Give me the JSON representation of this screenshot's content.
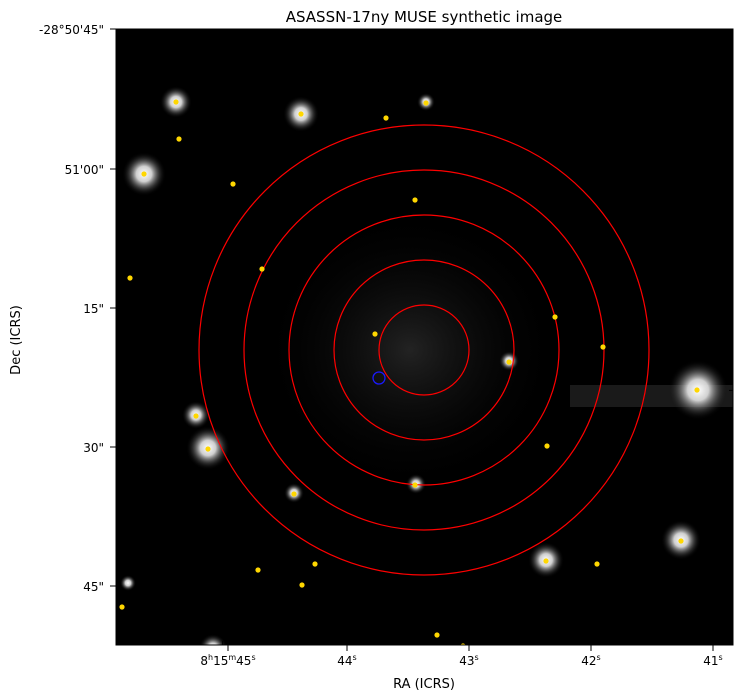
{
  "title": "ASASSN-17ny MUSE synthetic image",
  "xlabel": "RA (ICRS)",
  "ylabel": "Dec (ICRS)",
  "y_ticks": [
    "-28°50'45\"",
    "51'00\"",
    "15\"",
    "30\"",
    "45\""
  ],
  "x_ticks": [
    {
      "h": "8",
      "m": "15",
      "s": "45"
    },
    {
      "s": "44"
    },
    {
      "s": "43"
    },
    {
      "s": "42"
    },
    {
      "s": "41"
    }
  ],
  "colors": {
    "circles": "#ff0000",
    "markers": "#ffd700",
    "target": "#1a1aff",
    "background": "#000000"
  },
  "annuli_count": 5
}
